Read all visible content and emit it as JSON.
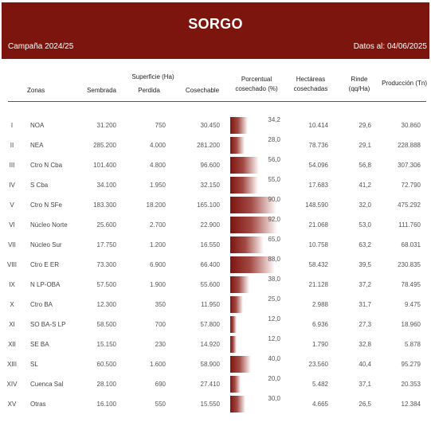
{
  "header": {
    "title": "SORGO",
    "campaign": "Campaña 2024/25",
    "date_info": "Datos al: 04/06/2025"
  },
  "columns": {
    "zonas": "Zonas",
    "superficie": "Superficie (Ha)",
    "sembrada": "Sembrada",
    "perdida": "Perdida",
    "cosechable": "Cosechable",
    "porcentual_1": "Porcentual",
    "porcentual_2": "cosechado (%)",
    "hectareas_1": "Hectáreas",
    "hectareas_2": "cosechadas",
    "rinde_1": "Rinde",
    "rinde_2": "(qq/Ha)",
    "produccion": "Producción (Tn)"
  },
  "rows": [
    {
      "num": "I",
      "zona": "NOA",
      "sembrada": "31.200",
      "perdida": "750",
      "cosechable": "30.450",
      "pct": "34,2",
      "pct_value": 34.2,
      "hectareas": "10.414",
      "rinde": "29,6",
      "produccion": "30.860"
    },
    {
      "num": "II",
      "zona": "NEA",
      "sembrada": "285.200",
      "perdida": "4.000",
      "cosechable": "281.200",
      "pct": "28,0",
      "pct_value": 28.0,
      "hectareas": "78.736",
      "rinde": "29,1",
      "produccion": "228.888"
    },
    {
      "num": "III",
      "zona": "Ctro N Cba",
      "sembrada": "101.400",
      "perdida": "4.800",
      "cosechable": "96.600",
      "pct": "56,0",
      "pct_value": 56.0,
      "hectareas": "54.096",
      "rinde": "56,8",
      "produccion": "307.306"
    },
    {
      "num": "IV",
      "zona": "S Cba",
      "sembrada": "34.100",
      "perdida": "1.950",
      "cosechable": "32.150",
      "pct": "55,0",
      "pct_value": 55.0,
      "hectareas": "17.683",
      "rinde": "41,2",
      "produccion": "72.790"
    },
    {
      "num": "V",
      "zona": "Ctro N SFe",
      "sembrada": "183.300",
      "perdida": "18.200",
      "cosechable": "165.100",
      "pct": "90,0",
      "pct_value": 90.0,
      "hectareas": "148.590",
      "rinde": "32,0",
      "produccion": "475.292"
    },
    {
      "num": "VI",
      "zona": "Núcleo Norte",
      "sembrada": "25.600",
      "perdida": "2.700",
      "cosechable": "22.900",
      "pct": "92,0",
      "pct_value": 92.0,
      "hectareas": "21.068",
      "rinde": "53,0",
      "produccion": "111.760"
    },
    {
      "num": "VII",
      "zona": "Núcleo Sur",
      "sembrada": "17.750",
      "perdida": "1.200",
      "cosechable": "16.550",
      "pct": "65,0",
      "pct_value": 65.0,
      "hectareas": "10.758",
      "rinde": "63,2",
      "produccion": "68.031"
    },
    {
      "num": "VIII",
      "zona": "Ctro E ER",
      "sembrada": "73.300",
      "perdida": "6.900",
      "cosechable": "66.400",
      "pct": "88,0",
      "pct_value": 88.0,
      "hectareas": "58.432",
      "rinde": "39,5",
      "produccion": "230.835"
    },
    {
      "num": "IX",
      "zona": "N LP-OBA",
      "sembrada": "57.500",
      "perdida": "1.900",
      "cosechable": "55.600",
      "pct": "38,0",
      "pct_value": 38.0,
      "hectareas": "21.128",
      "rinde": "37,2",
      "produccion": "78.495"
    },
    {
      "num": "X",
      "zona": "Ctro BA",
      "sembrada": "12.300",
      "perdida": "350",
      "cosechable": "11.950",
      "pct": "25,0",
      "pct_value": 25.0,
      "hectareas": "2.988",
      "rinde": "31,7",
      "produccion": "9.475"
    },
    {
      "num": "XI",
      "zona": "SO BA-S LP",
      "sembrada": "58.500",
      "perdida": "700",
      "cosechable": "57.800",
      "pct": "12,0",
      "pct_value": 12.0,
      "hectareas": "6.936",
      "rinde": "27,3",
      "produccion": "18.960"
    },
    {
      "num": "XII",
      "zona": "SE BA",
      "sembrada": "15.150",
      "perdida": "230",
      "cosechable": "14.920",
      "pct": "12,0",
      "pct_value": 12.0,
      "hectareas": "1.790",
      "rinde": "32,8",
      "produccion": "5.878"
    },
    {
      "num": "XIII",
      "zona": "SL",
      "sembrada": "60.500",
      "perdida": "1.600",
      "cosechable": "58.900",
      "pct": "40,0",
      "pct_value": 40.0,
      "hectareas": "23.560",
      "rinde": "40,4",
      "produccion": "95.279"
    },
    {
      "num": "XIV",
      "zona": "Cuenca Sal",
      "sembrada": "28.100",
      "perdida": "690",
      "cosechable": "27.410",
      "pct": "20,0",
      "pct_value": 20.0,
      "hectareas": "5.482",
      "rinde": "37,1",
      "produccion": "20.353"
    },
    {
      "num": "XV",
      "zona": "Otras",
      "sembrada": "16.100",
      "perdida": "550",
      "cosechable": "15.550",
      "pct": "30,0",
      "pct_value": 30.0,
      "hectareas": "4.665",
      "rinde": "26,5",
      "produccion": "12.384"
    }
  ],
  "colors": {
    "header_bg": "#7d150f",
    "bar_color": "#7d150f"
  }
}
